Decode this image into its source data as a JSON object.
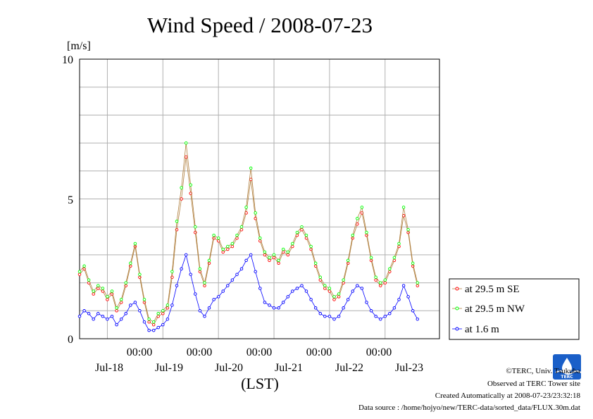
{
  "chart_data": {
    "type": "line",
    "title": "Wind Speed / 2008-07-23",
    "ylabel": "[m/s]",
    "xlabel": "(LST)",
    "ylim": [
      0,
      10
    ],
    "y_ticks": [
      "0",
      "5",
      "10"
    ],
    "x_time_labels": [
      "00:00",
      "00:00",
      "00:00",
      "00:00",
      "00:00"
    ],
    "x_date_labels": [
      "Jul-18",
      "Jul-19",
      "Jul-20",
      "Jul-21",
      "Jul-22",
      "Jul-23"
    ],
    "x_start": "2008-07-17T12:00",
    "x_end": "2008-07-23T23:30",
    "x_step_hours": 2,
    "grid": true,
    "legend_position": "right",
    "series": [
      {
        "name": "at 29.5 m SE",
        "color": "#ff0000",
        "line_color": "#b08040",
        "values": [
          2.3,
          2.5,
          2.0,
          1.6,
          1.8,
          1.7,
          1.4,
          1.6,
          1.0,
          1.3,
          1.9,
          2.6,
          3.3,
          2.2,
          1.3,
          0.6,
          0.5,
          0.8,
          0.9,
          1.1,
          2.2,
          3.9,
          5.0,
          6.5,
          5.2,
          3.8,
          2.4,
          1.9,
          2.7,
          3.6,
          3.5,
          3.1,
          3.2,
          3.3,
          3.6,
          3.9,
          4.5,
          5.7,
          4.3,
          3.5,
          3.0,
          2.8,
          2.9,
          2.7,
          3.1,
          3.0,
          3.3,
          3.7,
          3.9,
          3.6,
          3.2,
          2.6,
          2.1,
          1.8,
          1.7,
          1.4,
          1.5,
          2.0,
          2.7,
          3.6,
          4.1,
          4.5,
          3.7,
          2.8,
          2.1,
          1.9,
          2.0,
          2.4,
          2.8,
          3.3,
          4.4,
          3.8,
          2.6,
          1.9
        ]
      },
      {
        "name": "at 29.5 m NW",
        "color": "#00ff00",
        "line_color": "#b08040",
        "values": [
          2.4,
          2.6,
          2.1,
          1.7,
          1.9,
          1.8,
          1.5,
          1.7,
          1.1,
          1.4,
          2.0,
          2.7,
          3.4,
          2.3,
          1.4,
          0.7,
          0.6,
          0.9,
          1.0,
          1.2,
          2.4,
          4.2,
          5.4,
          7.0,
          5.5,
          4.0,
          2.5,
          2.0,
          2.8,
          3.7,
          3.6,
          3.2,
          3.3,
          3.4,
          3.7,
          4.0,
          4.7,
          6.1,
          4.5,
          3.6,
          3.1,
          2.9,
          3.0,
          2.8,
          3.2,
          3.1,
          3.4,
          3.8,
          4.0,
          3.7,
          3.3,
          2.7,
          2.2,
          1.9,
          1.8,
          1.5,
          1.6,
          2.1,
          2.8,
          3.7,
          4.3,
          4.7,
          3.8,
          2.9,
          2.2,
          2.0,
          2.1,
          2.5,
          2.9,
          3.4,
          4.7,
          3.9,
          2.7,
          2.0
        ]
      },
      {
        "name": "at 1.6 m",
        "color": "#0000ff",
        "line_color": "#0000ff",
        "values": [
          0.8,
          1.0,
          0.9,
          0.7,
          0.9,
          0.8,
          0.7,
          0.8,
          0.5,
          0.7,
          0.9,
          1.2,
          1.3,
          1.0,
          0.6,
          0.3,
          0.3,
          0.4,
          0.5,
          0.7,
          1.2,
          1.9,
          2.5,
          3.0,
          2.3,
          1.6,
          1.0,
          0.8,
          1.1,
          1.4,
          1.5,
          1.7,
          1.9,
          2.1,
          2.3,
          2.5,
          2.8,
          3.0,
          2.4,
          1.8,
          1.3,
          1.2,
          1.1,
          1.1,
          1.3,
          1.5,
          1.7,
          1.8,
          1.9,
          1.7,
          1.4,
          1.1,
          0.9,
          0.8,
          0.8,
          0.7,
          0.8,
          1.1,
          1.4,
          1.7,
          1.9,
          1.8,
          1.3,
          1.0,
          0.8,
          0.7,
          0.8,
          0.9,
          1.1,
          1.4,
          1.9,
          1.5,
          1.0,
          0.7
        ]
      }
    ]
  },
  "footer": {
    "copyright": "©TERC, Univ. Tsukuba",
    "observed": "Observed at TERC Tower site",
    "created": "Created Automatically at 2008-07-23/23:32:18",
    "source": "Data source : /home/hojyo/new/TERC-data/sorted_data/FLUX.30m.dat"
  },
  "logo": {
    "text": "TERC",
    "color": "#1a5fc8"
  }
}
